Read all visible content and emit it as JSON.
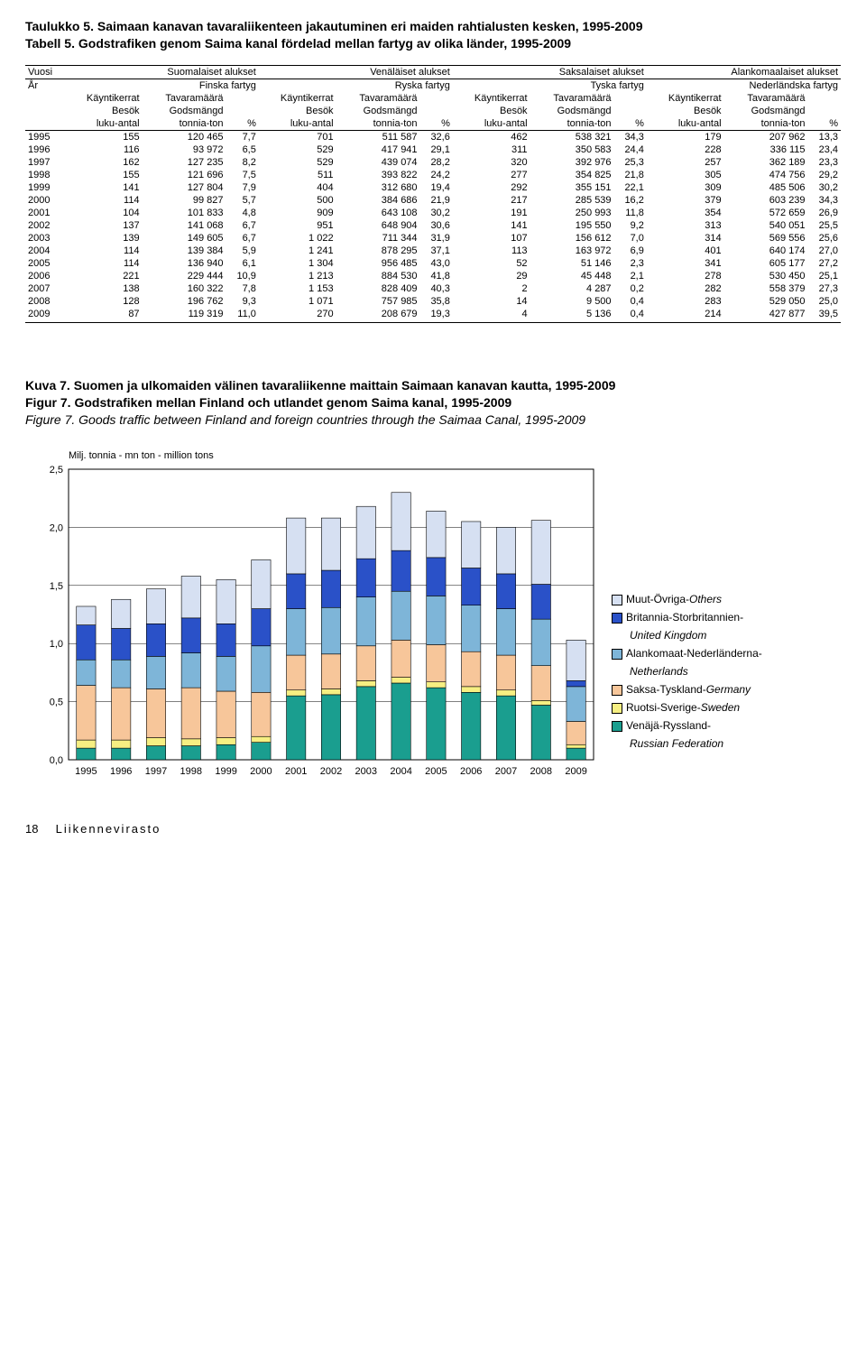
{
  "table": {
    "title_line1": "Taulukko 5. Saimaan kanavan tavaraliikenteen jakautuminen eri maiden rahtialusten kesken, 1995-2009",
    "title_line2": "Tabell 5. Godstrafiken genom Saima kanal fördelad mellan fartyg av olika länder, 1995-2009",
    "col_year_a": "Vuosi",
    "col_year_b": "År",
    "groups": [
      {
        "a": "Suomalaiset alukset",
        "b": "Finska fartyg"
      },
      {
        "a": "Venäläiset alukset",
        "b": "Ryska fartyg"
      },
      {
        "a": "Saksalaiset alukset",
        "b": "Tyska fartyg"
      },
      {
        "a": "Alankomaalaiset alukset",
        "b": "Nederländska fartyg"
      }
    ],
    "sub_a": "Käyntikerrat",
    "sub_b": "Tavaramäärä",
    "sub_c": "Besök",
    "sub_d": "Godsmängd",
    "unit_a": "luku-antal",
    "unit_b": "tonnia-ton",
    "unit_c": "%",
    "rows": [
      {
        "y": "1995",
        "c": [
          [
            "155",
            "120 465",
            "7,7"
          ],
          [
            "701",
            "511 587",
            "32,6"
          ],
          [
            "462",
            "538 321",
            "34,3"
          ],
          [
            "179",
            "207 962",
            "13,3"
          ]
        ]
      },
      {
        "y": "1996",
        "c": [
          [
            "116",
            "93 972",
            "6,5"
          ],
          [
            "529",
            "417 941",
            "29,1"
          ],
          [
            "311",
            "350 583",
            "24,4"
          ],
          [
            "228",
            "336 115",
            "23,4"
          ]
        ]
      },
      {
        "y": "1997",
        "c": [
          [
            "162",
            "127 235",
            "8,2"
          ],
          [
            "529",
            "439 074",
            "28,2"
          ],
          [
            "320",
            "392 976",
            "25,3"
          ],
          [
            "257",
            "362 189",
            "23,3"
          ]
        ]
      },
      {
        "y": "1998",
        "c": [
          [
            "155",
            "121 696",
            "7,5"
          ],
          [
            "511",
            "393 822",
            "24,2"
          ],
          [
            "277",
            "354 825",
            "21,8"
          ],
          [
            "305",
            "474 756",
            "29,2"
          ]
        ]
      },
      {
        "y": "1999",
        "c": [
          [
            "141",
            "127 804",
            "7,9"
          ],
          [
            "404",
            "312 680",
            "19,4"
          ],
          [
            "292",
            "355 151",
            "22,1"
          ],
          [
            "309",
            "485 506",
            "30,2"
          ]
        ]
      },
      {
        "y": "2000",
        "c": [
          [
            "114",
            "99 827",
            "5,7"
          ],
          [
            "500",
            "384 686",
            "21,9"
          ],
          [
            "217",
            "285 539",
            "16,2"
          ],
          [
            "379",
            "603 239",
            "34,3"
          ]
        ]
      },
      {
        "y": "2001",
        "c": [
          [
            "104",
            "101 833",
            "4,8"
          ],
          [
            "909",
            "643 108",
            "30,2"
          ],
          [
            "191",
            "250 993",
            "11,8"
          ],
          [
            "354",
            "572 659",
            "26,9"
          ]
        ]
      },
      {
        "y": "2002",
        "c": [
          [
            "137",
            "141 068",
            "6,7"
          ],
          [
            "951",
            "648 904",
            "30,6"
          ],
          [
            "141",
            "195 550",
            "9,2"
          ],
          [
            "313",
            "540 051",
            "25,5"
          ]
        ]
      },
      {
        "y": "2003",
        "c": [
          [
            "139",
            "149 605",
            "6,7"
          ],
          [
            "1 022",
            "711 344",
            "31,9"
          ],
          [
            "107",
            "156 612",
            "7,0"
          ],
          [
            "314",
            "569 556",
            "25,6"
          ]
        ]
      },
      {
        "y": "2004",
        "c": [
          [
            "114",
            "139 384",
            "5,9"
          ],
          [
            "1 241",
            "878 295",
            "37,1"
          ],
          [
            "113",
            "163 972",
            "6,9"
          ],
          [
            "401",
            "640 174",
            "27,0"
          ]
        ]
      },
      {
        "y": "2005",
        "c": [
          [
            "114",
            "136 940",
            "6,1"
          ],
          [
            "1 304",
            "956 485",
            "43,0"
          ],
          [
            "52",
            "51 146",
            "2,3"
          ],
          [
            "341",
            "605 177",
            "27,2"
          ]
        ]
      },
      {
        "y": "2006",
        "c": [
          [
            "221",
            "229 444",
            "10,9"
          ],
          [
            "1 213",
            "884 530",
            "41,8"
          ],
          [
            "29",
            "45 448",
            "2,1"
          ],
          [
            "278",
            "530 450",
            "25,1"
          ]
        ]
      },
      {
        "y": "2007",
        "c": [
          [
            "138",
            "160 322",
            "7,8"
          ],
          [
            "1 153",
            "828 409",
            "40,3"
          ],
          [
            "2",
            "4 287",
            "0,2"
          ],
          [
            "282",
            "558 379",
            "27,3"
          ]
        ]
      },
      {
        "y": "2008",
        "c": [
          [
            "128",
            "196 762",
            "9,3"
          ],
          [
            "1 071",
            "757 985",
            "35,8"
          ],
          [
            "14",
            "9 500",
            "0,4"
          ],
          [
            "283",
            "529 050",
            "25,0"
          ]
        ]
      },
      {
        "y": "2009",
        "c": [
          [
            "87",
            "119 319",
            "11,0"
          ],
          [
            "270",
            "208 679",
            "19,3"
          ],
          [
            "4",
            "5 136",
            "0,4"
          ],
          [
            "214",
            "427 877",
            "39,5"
          ]
        ]
      }
    ]
  },
  "figure": {
    "title_line1": "Kuva 7. Suomen ja ulkomaiden välinen tavaraliikenne maittain Saimaan kanavan kautta, 1995-2009",
    "title_line2": "Figur 7. Godstrafiken mellan Finland och utlandet genom Saima kanal, 1995-2009",
    "title_line3": "Figure 7. Goods traffic between Finland and foreign countries through the Saimaa Canal, 1995-2009",
    "y_axis_label": "Milj. tonnia - mn ton - million tons",
    "ylim": [
      0,
      2.5
    ],
    "ytick_step": 0.5,
    "yticks": [
      "0,0",
      "0,5",
      "1,0",
      "1,5",
      "2,0",
      "2,5"
    ],
    "years": [
      "1995",
      "1996",
      "1997",
      "1998",
      "1999",
      "2000",
      "2001",
      "2002",
      "2003",
      "2004",
      "2005",
      "2006",
      "2007",
      "2008",
      "2009"
    ],
    "series": [
      {
        "name": "russia",
        "label": "Venäjä-Ryssland-",
        "label2": "Russian Federation",
        "color": "#1a9e8f",
        "values": [
          0.1,
          0.1,
          0.12,
          0.12,
          0.13,
          0.15,
          0.55,
          0.56,
          0.63,
          0.66,
          0.62,
          0.58,
          0.55,
          0.47,
          0.1
        ]
      },
      {
        "name": "sweden",
        "label": "Ruotsi-Sverige-Sweden",
        "color": "#f6ef82",
        "values": [
          0.07,
          0.07,
          0.07,
          0.06,
          0.06,
          0.05,
          0.05,
          0.05,
          0.05,
          0.05,
          0.05,
          0.05,
          0.05,
          0.04,
          0.03
        ]
      },
      {
        "name": "germany",
        "label": "Saksa-Tyskland-Germany",
        "color": "#f7c69a",
        "values": [
          0.47,
          0.45,
          0.42,
          0.44,
          0.4,
          0.38,
          0.3,
          0.3,
          0.3,
          0.32,
          0.32,
          0.3,
          0.3,
          0.3,
          0.2
        ]
      },
      {
        "name": "netherlands",
        "label": "Alankomaat-Nederländerna-",
        "label2": "Netherlands",
        "color": "#7eb5d8",
        "values": [
          0.22,
          0.24,
          0.28,
          0.3,
          0.3,
          0.4,
          0.4,
          0.4,
          0.42,
          0.42,
          0.42,
          0.4,
          0.4,
          0.4,
          0.3
        ]
      },
      {
        "name": "uk",
        "label": "Britannia-Storbritannien-",
        "label2": "United Kingdom",
        "color": "#2a51c8",
        "values": [
          0.3,
          0.27,
          0.28,
          0.3,
          0.28,
          0.32,
          0.3,
          0.32,
          0.33,
          0.35,
          0.33,
          0.32,
          0.3,
          0.3,
          0.05
        ]
      },
      {
        "name": "others",
        "label": "Muut-Övriga-Others",
        "color": "#d6e0f2",
        "values": [
          0.16,
          0.25,
          0.3,
          0.36,
          0.38,
          0.42,
          0.48,
          0.45,
          0.45,
          0.5,
          0.4,
          0.4,
          0.4,
          0.55,
          0.35
        ]
      }
    ],
    "chart_bg": "#ffffff",
    "grid_color": "#000000",
    "bar_width": 0.55
  },
  "footer": {
    "page": "18",
    "brand": "Liikennevirasto"
  }
}
